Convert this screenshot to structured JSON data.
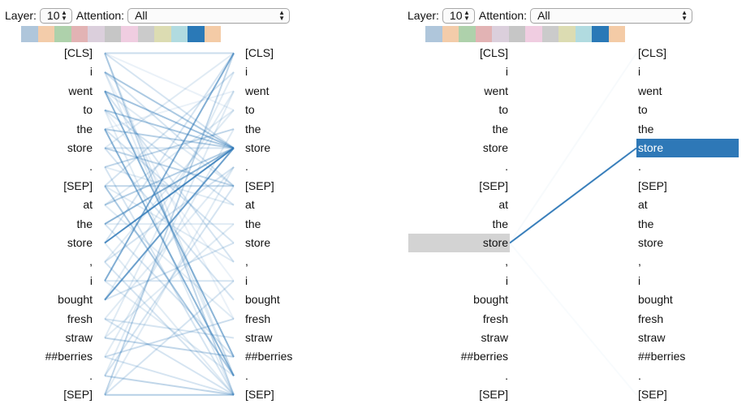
{
  "controls": {
    "layer_label": "Layer:",
    "layer_value": "10",
    "attention_label": "Attention:",
    "attention_value": "All"
  },
  "head_colors": [
    "#afc6db",
    "#f3ccaa",
    "#aed1ab",
    "#e2b3b4",
    "#dbcfdc",
    "#c6c6c6",
    "#f0cde1",
    "#cbcbcb",
    "#dcdcb2",
    "#b1dbe0",
    "#2a79b7",
    "#f4cba6"
  ],
  "tokens": [
    "[CLS]",
    "i",
    "went",
    "to",
    "the",
    "store",
    ".",
    "[SEP]",
    "at",
    "the",
    "store",
    ",",
    "i",
    "bought",
    "fresh",
    "straw",
    "##berries",
    ".",
    "[SEP]"
  ],
  "attention_color": "#2e78b7",
  "views": [
    {
      "name": "all-tokens",
      "edges": [
        [
          0,
          0,
          0.25
        ],
        [
          0,
          5,
          0.2
        ],
        [
          0,
          18,
          0.3
        ],
        [
          0,
          17,
          0.15
        ],
        [
          0,
          3,
          0.1
        ],
        [
          1,
          5,
          0.4
        ],
        [
          1,
          7,
          0.2
        ],
        [
          1,
          17,
          0.15
        ],
        [
          1,
          14,
          0.1
        ],
        [
          2,
          5,
          0.45
        ],
        [
          2,
          16,
          0.55
        ],
        [
          2,
          11,
          0.2
        ],
        [
          2,
          7,
          0.15
        ],
        [
          3,
          5,
          0.4
        ],
        [
          3,
          8,
          0.2
        ],
        [
          3,
          18,
          0.15
        ],
        [
          3,
          12,
          0.1
        ],
        [
          4,
          5,
          0.35
        ],
        [
          4,
          17,
          0.55
        ],
        [
          4,
          10,
          0.2
        ],
        [
          4,
          2,
          0.1
        ],
        [
          5,
          7,
          0.3
        ],
        [
          5,
          13,
          0.2
        ],
        [
          5,
          0,
          0.15
        ],
        [
          5,
          5,
          0.2
        ],
        [
          6,
          4,
          0.3
        ],
        [
          6,
          18,
          0.2
        ],
        [
          6,
          8,
          0.15
        ],
        [
          7,
          17,
          0.4
        ],
        [
          7,
          7,
          0.3
        ],
        [
          7,
          1,
          0.2
        ],
        [
          7,
          11,
          0.15
        ],
        [
          8,
          5,
          0.35
        ],
        [
          8,
          14,
          0.15
        ],
        [
          8,
          3,
          0.15
        ],
        [
          9,
          5,
          0.55
        ],
        [
          9,
          16,
          0.2
        ],
        [
          9,
          9,
          0.15
        ],
        [
          10,
          5,
          0.85
        ],
        [
          10,
          0,
          0.2
        ],
        [
          10,
          18,
          0.15
        ],
        [
          11,
          6,
          0.2
        ],
        [
          11,
          18,
          0.2
        ],
        [
          11,
          3,
          0.15
        ],
        [
          12,
          0,
          0.6
        ],
        [
          12,
          12,
          0.2
        ],
        [
          12,
          17,
          0.15
        ],
        [
          13,
          5,
          0.7
        ],
        [
          13,
          10,
          0.2
        ],
        [
          13,
          2,
          0.15
        ],
        [
          14,
          15,
          0.2
        ],
        [
          14,
          6,
          0.15
        ],
        [
          14,
          18,
          0.2
        ],
        [
          15,
          16,
          0.3
        ],
        [
          15,
          9,
          0.15
        ],
        [
          15,
          1,
          0.15
        ],
        [
          16,
          14,
          0.25
        ],
        [
          16,
          4,
          0.15
        ],
        [
          16,
          18,
          0.2
        ],
        [
          17,
          18,
          0.3
        ],
        [
          17,
          7,
          0.2
        ],
        [
          17,
          2,
          0.15
        ],
        [
          18,
          18,
          0.35
        ],
        [
          18,
          0,
          0.3
        ],
        [
          18,
          12,
          0.2
        ],
        [
          18,
          6,
          0.15
        ]
      ]
    },
    {
      "name": "selected-token",
      "selected_source": 10,
      "selected_target": 5,
      "edges": [
        [
          10,
          5,
          0.95
        ],
        [
          10,
          0,
          0.04
        ],
        [
          10,
          18,
          0.03
        ]
      ]
    }
  ]
}
